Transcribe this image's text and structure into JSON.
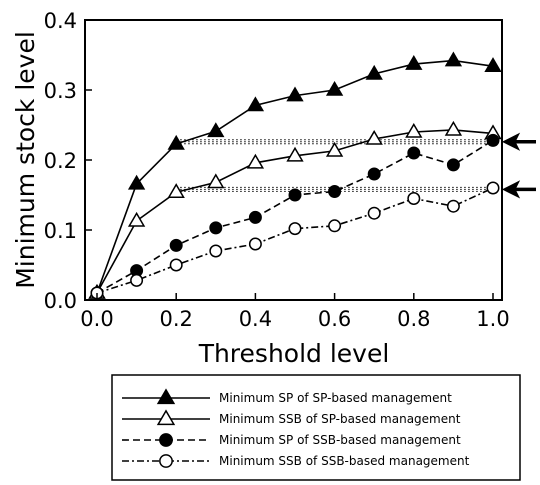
{
  "chart_data": {
    "type": "line",
    "xlabel": "Threshold level",
    "ylabel": "Minimum stock level",
    "xlim": [
      0.0,
      1.0
    ],
    "ylim": [
      0.0,
      0.4
    ],
    "xticks": [
      "0.0",
      "0.2",
      "0.4",
      "0.6",
      "0.8",
      "1.0"
    ],
    "yticks": [
      "0.0",
      "0.1",
      "0.2",
      "0.3",
      "0.4"
    ],
    "x": [
      0.0,
      0.1,
      0.2,
      0.3,
      0.4,
      0.5,
      0.6,
      0.7,
      0.8,
      0.9,
      1.0
    ],
    "legend_position": "below",
    "series": [
      {
        "name": "Minimum SP of SP-based management",
        "line": "solid",
        "marker": "filled-triangle",
        "values": [
          0.01,
          0.166,
          0.223,
          0.241,
          0.278,
          0.292,
          0.3,
          0.323,
          0.337,
          0.342,
          0.334
        ]
      },
      {
        "name": "Minimum SSB of SP-based management",
        "line": "solid",
        "marker": "open-triangle",
        "values": [
          0.01,
          0.113,
          0.154,
          0.168,
          0.196,
          0.206,
          0.213,
          0.23,
          0.24,
          0.243,
          0.238
        ]
      },
      {
        "name": "Minimum SP of SSB-based management",
        "line": "dashed",
        "marker": "filled-circle",
        "values": [
          0.01,
          0.042,
          0.078,
          0.103,
          0.118,
          0.15,
          0.155,
          0.18,
          0.21,
          0.193,
          0.228
        ]
      },
      {
        "name": "Minimum SSB of SSB-based management",
        "line": "dash-dot",
        "marker": "open-circle",
        "values": [
          0.01,
          0.028,
          0.05,
          0.07,
          0.08,
          0.102,
          0.106,
          0.124,
          0.145,
          0.134,
          0.16
        ]
      }
    ],
    "reference_lines": [
      {
        "y": 0.226,
        "x_from": 0.2,
        "x_to": 1.0,
        "style": "dotted"
      },
      {
        "y": 0.158,
        "x_from": 0.2,
        "x_to": 1.0,
        "style": "dotted"
      }
    ],
    "arrows": [
      {
        "points_to_y": 0.226,
        "direction": "left"
      },
      {
        "points_to_y": 0.158,
        "direction": "left"
      }
    ]
  }
}
